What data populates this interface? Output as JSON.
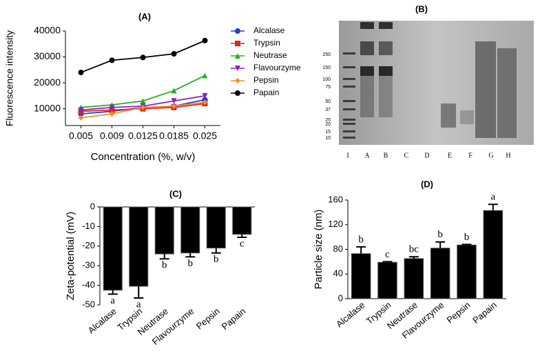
{
  "chart_data": [
    {
      "type": "line",
      "title": "(A)",
      "y_label": "Fluorescence intensity",
      "x_label": "Concentration (%, w/v)",
      "categories": [
        "0.005",
        "0.009",
        "0.0125",
        "0.0185",
        "0.025"
      ],
      "ylim": [
        3500,
        40000
      ],
      "yticks": [
        10000,
        20000,
        30000,
        40000
      ],
      "series": [
        {
          "name": "Alcalase",
          "color": "#1f3fd8",
          "marker": "circle",
          "values": [
            8000,
            9000,
            10500,
            11000,
            13500
          ]
        },
        {
          "name": "Trypsin",
          "color": "#e8211b",
          "marker": "square",
          "values": [
            9000,
            9500,
            10000,
            10500,
            12000
          ]
        },
        {
          "name": "Neutrase",
          "color": "#21b31f",
          "marker": "triangle",
          "values": [
            10500,
            11500,
            13000,
            17000,
            22800
          ]
        },
        {
          "name": "Flavourzyme",
          "color": "#8a1fd0",
          "marker": "down-triangle",
          "values": [
            9500,
            10500,
            11000,
            13000,
            15000
          ]
        },
        {
          "name": "Pepsin",
          "color": "#f39223",
          "marker": "diamond",
          "values": [
            6500,
            8000,
            10500,
            11000,
            12500
          ]
        },
        {
          "name": "Papain",
          "color": "#000000",
          "marker": "circle",
          "values": [
            24000,
            28700,
            29800,
            31200,
            36300
          ]
        }
      ]
    },
    {
      "type": "bar",
      "title": "(C)",
      "y_label": "Zeta-potential (mV)",
      "categories": [
        "Alcalase",
        "Trypsin",
        "Neutrase",
        "Flavourzyme",
        "Pepsin",
        "Papain"
      ],
      "values": [
        -42.5,
        -40.5,
        -24,
        -23.5,
        -21,
        -14
      ],
      "errors": [
        2,
        6,
        2.5,
        2,
        2.5,
        1.5
      ],
      "annotations": [
        "a",
        "a",
        "b",
        "b",
        "b",
        "c"
      ],
      "color": "#000000",
      "ylim": [
        -50,
        0
      ],
      "yticks": [
        0,
        -10,
        -20,
        -30,
        -40,
        -50
      ]
    },
    {
      "type": "bar",
      "title": "(D)",
      "y_label": "Particle size (nm)",
      "categories": [
        "Alcalase",
        "Trypsin",
        "Neutrase",
        "Flavourzyme",
        "Pepsin",
        "Papain"
      ],
      "values": [
        73,
        59,
        65,
        82,
        87,
        143
      ],
      "errors": [
        11,
        1,
        3,
        10,
        1,
        10
      ],
      "annotations": [
        "b",
        "c",
        "bc",
        "b",
        "b",
        "a"
      ],
      "color": "#000000",
      "ylim": [
        0,
        160
      ],
      "yticks": [
        0,
        40,
        80,
        120,
        160
      ]
    }
  ],
  "gel": {
    "title": "(B)",
    "markers": [
      250,
      150,
      100,
      75,
      50,
      37,
      25,
      20,
      15,
      10
    ],
    "lanes": [
      "I",
      "A",
      "B",
      "C",
      "D",
      "E",
      "F",
      "G",
      "H"
    ]
  }
}
